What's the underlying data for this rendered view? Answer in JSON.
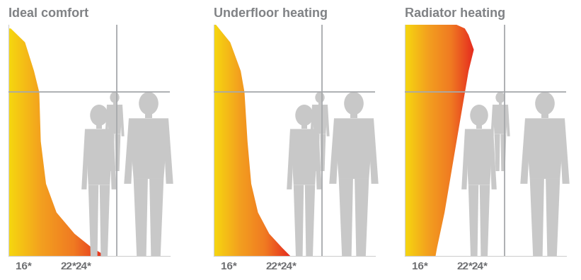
{
  "chart_data": [
    {
      "type": "area",
      "title": "Ideal comfort",
      "x": [
        14.3,
        16.2,
        17.4,
        18.1,
        18.3,
        19.0,
        20.4,
        22.8,
        25.1,
        27.0
      ],
      "y": [
        2.46,
        2.31,
        2.0,
        1.77,
        1.24,
        0.78,
        0.47,
        0.24,
        0.09,
        0
      ],
      "xlim": [
        14,
        35.5
      ],
      "ylim": [
        0,
        2.5
      ],
      "xticks": [
        {
          "value": 16,
          "label": "16*"
        },
        {
          "value": 22,
          "label": "22*"
        },
        {
          "value": 24,
          "label": "24*"
        }
      ],
      "tick_labels": "x"
    },
    {
      "type": "area",
      "title": "Underfloor heating",
      "x": [
        14.3,
        16.2,
        17.6,
        18.1,
        18.5,
        19.0,
        19.9,
        21.4,
        23.1,
        24.2
      ],
      "y": [
        2.5,
        2.31,
        2.0,
        1.77,
        1.24,
        0.78,
        0.47,
        0.24,
        0.09,
        0
      ],
      "xlim": [
        14,
        35.5
      ],
      "ylim": [
        0,
        2.5
      ],
      "xticks": [
        {
          "value": 16,
          "label": "16*"
        },
        {
          "value": 22,
          "label": "22*"
        },
        {
          "value": 24,
          "label": "24*"
        }
      ],
      "tick_labels": "x"
    },
    {
      "type": "area",
      "title": "Radiator heating",
      "x": [
        20.9,
        22.0,
        22.5,
        23.2,
        22.5,
        20.9,
        19.3,
        18.3,
        18.1
      ],
      "y": [
        2.5,
        2.46,
        2.39,
        2.23,
        2.0,
        1.24,
        0.47,
        0.09,
        0
      ],
      "xlim": [
        14,
        35.5
      ],
      "ylim": [
        0,
        2.5
      ],
      "xticks": [
        {
          "value": 16,
          "label": "16*"
        },
        {
          "value": 22,
          "label": "22*"
        },
        {
          "value": 24,
          "label": "24*"
        }
      ],
      "tick_labels": "x"
    }
  ]
}
